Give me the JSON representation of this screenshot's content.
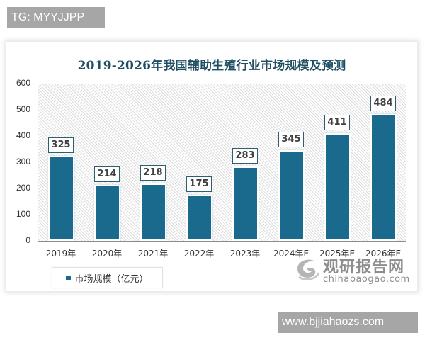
{
  "overlay": {
    "top_badge": "TG: MYYJJPP",
    "bottom_badge": "www.bjjiahaozs.com"
  },
  "watermark": {
    "name_cn": "观研报告网",
    "domain": "chinabaogao.com",
    "icon": "swirl-logo-icon"
  },
  "colors": {
    "bar": "#1a6a8e",
    "title": "#1f4e63",
    "badge_bg": "#a6a6a6"
  },
  "chart_data": {
    "type": "bar",
    "title": "2019-2026年我国辅助生殖行业市场规模及预测",
    "xlabel": "",
    "ylabel": "",
    "categories": [
      "2019年",
      "2020年",
      "2021年",
      "2022年",
      "2023年",
      "2024年E",
      "2025年E",
      "2026年E"
    ],
    "series": [
      {
        "name": "市场规模（亿元）",
        "values": [
          325,
          214,
          218,
          175,
          283,
          345,
          411,
          484
        ]
      }
    ],
    "value_labels": [
      "325",
      "214",
      "218",
      "175",
      "283",
      "345",
      "411",
      "484"
    ],
    "yticks": [
      "0",
      "100",
      "200",
      "300",
      "400",
      "500",
      "600"
    ],
    "ylim": [
      0,
      600
    ],
    "grid": false,
    "legend_position": "bottom-left",
    "legend": [
      "市场规模（亿元）"
    ],
    "background": "diagonal-hatch"
  }
}
